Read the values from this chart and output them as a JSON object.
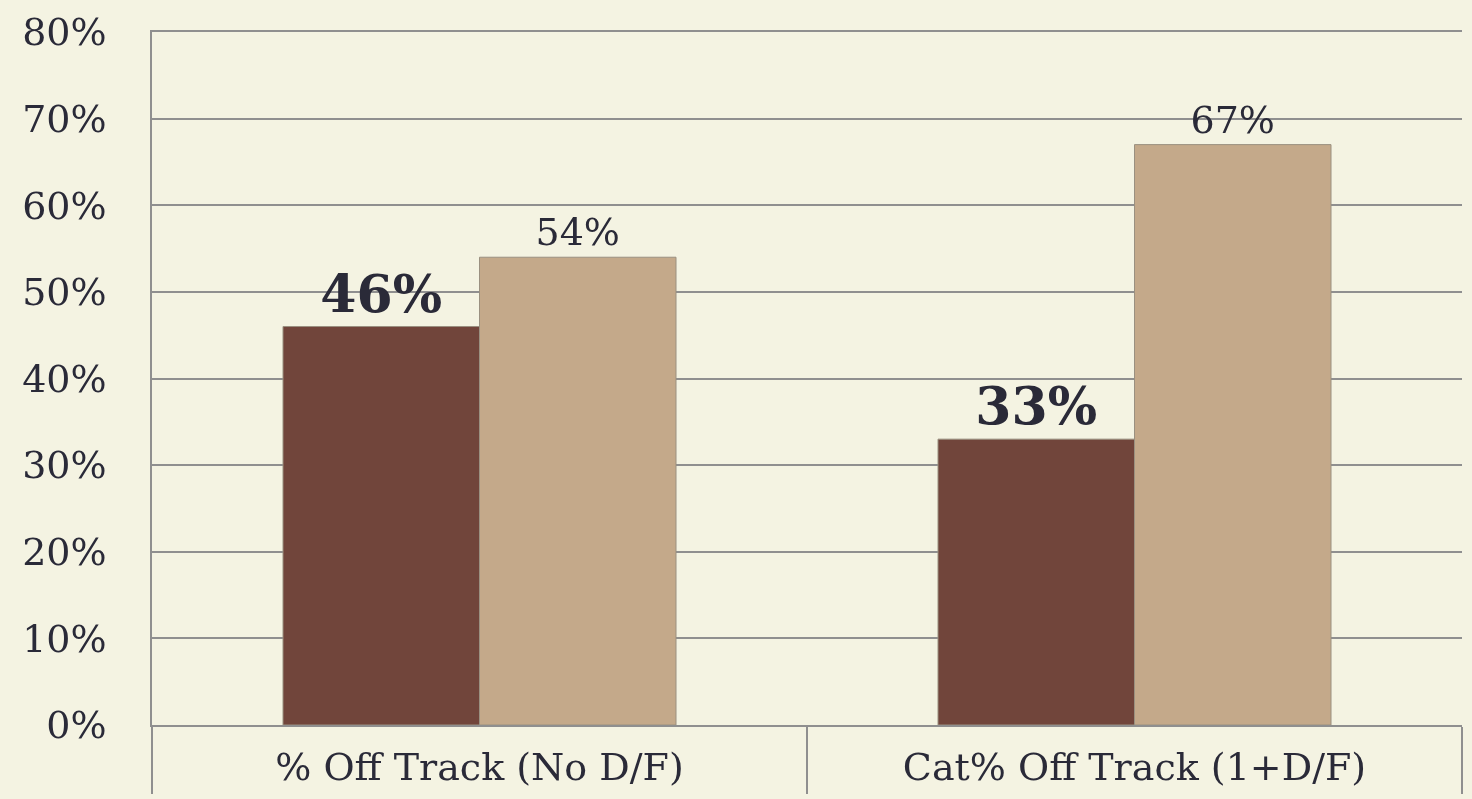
{
  "chart_data": {
    "type": "bar",
    "categories": [
      "% Off Track (No D/F)",
      "Cat% Off Track (1+D/F)"
    ],
    "series": [
      {
        "color": "#71453b",
        "values": [
          46,
          33
        ],
        "value_labels": [
          "46%",
          "33%"
        ]
      },
      {
        "color": "#c4a98a",
        "values": [
          54,
          67
        ],
        "value_labels": [
          "54%",
          "67%"
        ]
      }
    ],
    "ylim": [
      0,
      80
    ],
    "yticks": [
      {
        "value": 0,
        "label": "0%"
      },
      {
        "value": 10,
        "label": "10%"
      },
      {
        "value": 20,
        "label": "20%"
      },
      {
        "value": 30,
        "label": "30%"
      },
      {
        "value": 40,
        "label": "40%"
      },
      {
        "value": 50,
        "label": "50%"
      },
      {
        "value": 60,
        "label": "60%"
      },
      {
        "value": 70,
        "label": "70%"
      },
      {
        "value": 80,
        "label": "80%"
      }
    ],
    "grid": "y"
  }
}
